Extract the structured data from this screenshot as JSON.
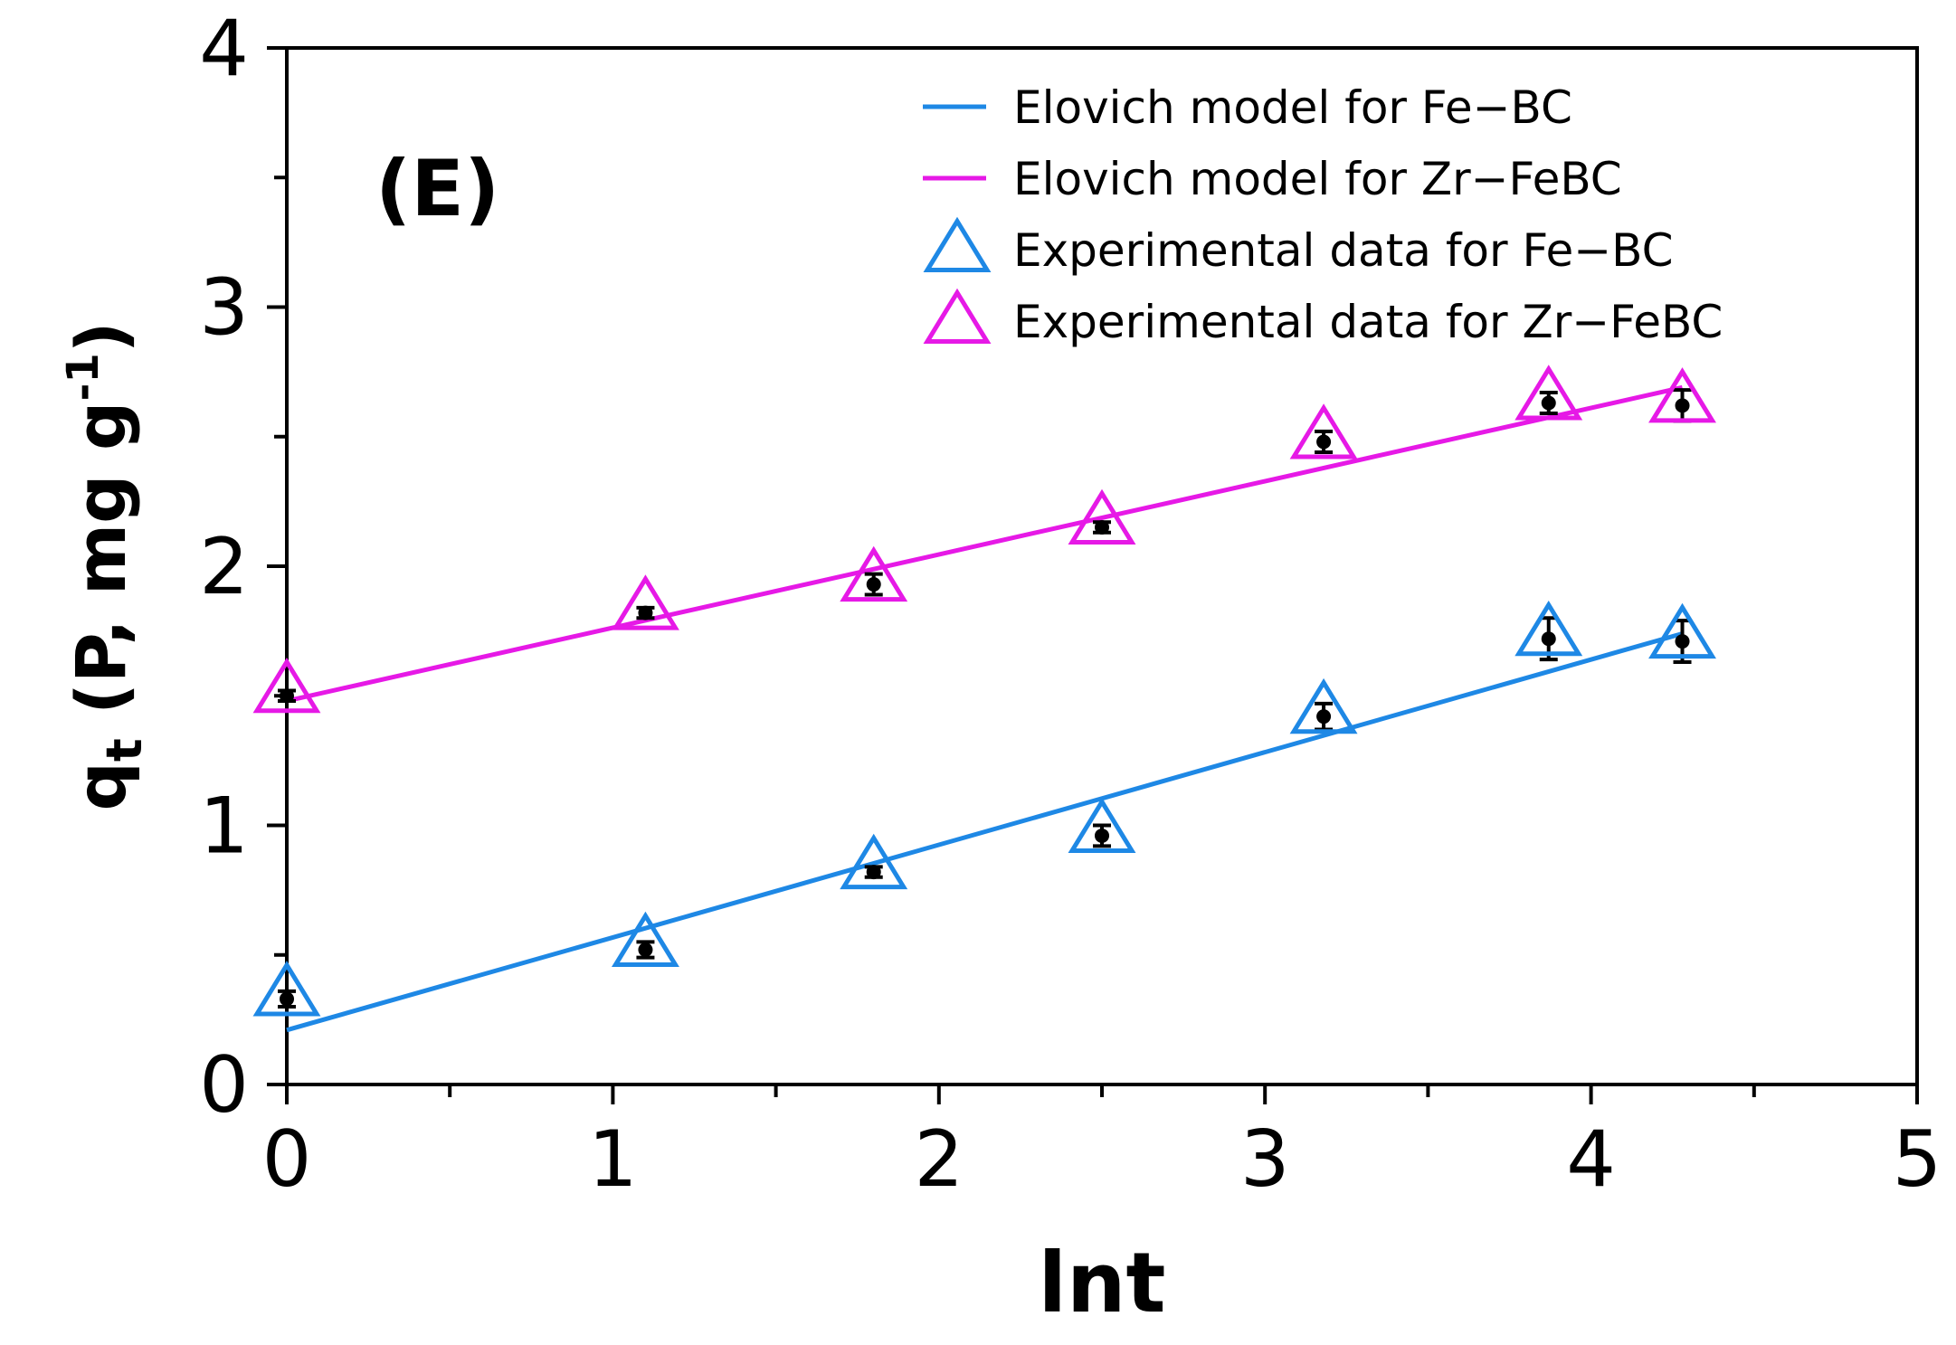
{
  "chart_data": {
    "type": "scatter",
    "panel_label": "(E)",
    "xlabel": "lnt",
    "ylabel_main": "q",
    "ylabel_sub": "t",
    "ylabel_unit_pre": " (P, mg g",
    "ylabel_unit_sup": "-1",
    "ylabel_unit_post": ")",
    "xlim": [
      0,
      5
    ],
    "ylim": [
      0,
      4
    ],
    "x_ticks": [
      "0",
      "1",
      "2",
      "3",
      "4",
      "5"
    ],
    "y_ticks": [
      "0",
      "1",
      "2",
      "3",
      "4"
    ],
    "x_tick_values": [
      0,
      1,
      2,
      3,
      4,
      5
    ],
    "y_tick_values": [
      0,
      1,
      2,
      3,
      4
    ],
    "legend_position": "top-right",
    "x": [
      0,
      1.1,
      1.8,
      2.5,
      3.18,
      3.87,
      4.28
    ],
    "series": [
      {
        "name": "Experimental data for Fe−BC",
        "kind": "points",
        "color": "#1e88e5",
        "values": [
          0.33,
          0.52,
          0.82,
          0.96,
          1.42,
          1.72,
          1.71
        ],
        "errors": [
          0.03,
          0.03,
          0.02,
          0.04,
          0.05,
          0.08,
          0.08
        ]
      },
      {
        "name": "Experimental data for Zr−FeBC",
        "kind": "points",
        "color": "#e619e6",
        "values": [
          1.5,
          1.82,
          1.93,
          2.15,
          2.48,
          2.63,
          2.62
        ],
        "errors": [
          0.02,
          0.02,
          0.04,
          0.02,
          0.04,
          0.04,
          0.06
        ]
      }
    ],
    "fits": [
      {
        "name": "Elovich model for Fe−BC",
        "kind": "line",
        "color": "#1e88e5",
        "x": [
          0,
          4.28
        ],
        "values": [
          0.21,
          1.74
        ]
      },
      {
        "name": "Elovich model for Zr−FeBC",
        "kind": "line",
        "color": "#e619e6",
        "x": [
          0,
          4.28
        ],
        "values": [
          1.48,
          2.69
        ]
      }
    ],
    "legend": [
      {
        "label": "Elovich model for Fe−BC",
        "marker": "line",
        "color": "#1e88e5"
      },
      {
        "label": "Elovich model for Zr−FeBC",
        "marker": "line",
        "color": "#e619e6"
      },
      {
        "label": "Experimental data for Fe−BC",
        "marker": "triangle",
        "color": "#1e88e5"
      },
      {
        "label": "Experimental data for Zr−FeBC",
        "marker": "triangle",
        "color": "#e619e6"
      }
    ]
  }
}
